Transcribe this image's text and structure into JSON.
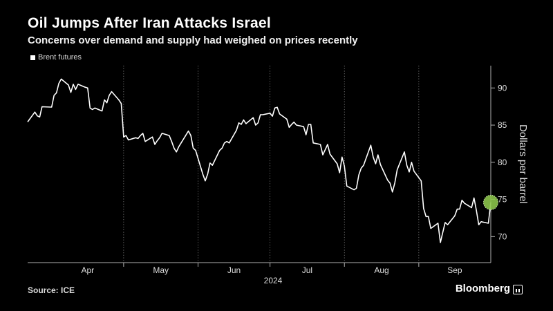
{
  "title": "Oil Jumps After Iran Attacks Israel",
  "subtitle": "Concerns over demand and supply had weighed on prices recently",
  "source": "Source: ICE",
  "brand": "Bloomberg",
  "colors": {
    "background": "#000000",
    "line": "#ffffff",
    "highlight": "#8bc34a"
  },
  "chart_data": {
    "type": "line",
    "title": "Oil Jumps After Iran Attacks Israel",
    "subtitle": "Concerns over demand and supply had weighed on prices recently",
    "ylabel": "Dollars per barrel",
    "year_label": "2024",
    "x_tick_labels": [
      "Apr",
      "May",
      "Jun",
      "Jul",
      "Aug",
      "Sep"
    ],
    "y_ticks": [
      70,
      75,
      80,
      85,
      90
    ],
    "ylim": [
      66.5,
      93
    ],
    "grid": "vertical-dotted",
    "legend_position": "top-left",
    "highlight_last_point": true,
    "series": [
      {
        "name": "Brent futures",
        "x": [
          "2024-03-22",
          "2024-03-25",
          "2024-03-26",
          "2024-03-27",
          "2024-03-28",
          "2024-04-01",
          "2024-04-02",
          "2024-04-03",
          "2024-04-04",
          "2024-04-05",
          "2024-04-08",
          "2024-04-09",
          "2024-04-10",
          "2024-04-11",
          "2024-04-12",
          "2024-04-15",
          "2024-04-16",
          "2024-04-17",
          "2024-04-18",
          "2024-04-19",
          "2024-04-22",
          "2024-04-23",
          "2024-04-24",
          "2024-04-25",
          "2024-04-26",
          "2024-04-29",
          "2024-04-30",
          "2024-05-01",
          "2024-05-02",
          "2024-05-03",
          "2024-05-06",
          "2024-05-07",
          "2024-05-08",
          "2024-05-09",
          "2024-05-10",
          "2024-05-13",
          "2024-05-14",
          "2024-05-15",
          "2024-05-16",
          "2024-05-17",
          "2024-05-20",
          "2024-05-21",
          "2024-05-22",
          "2024-05-23",
          "2024-05-24",
          "2024-05-28",
          "2024-05-29",
          "2024-05-30",
          "2024-05-31",
          "2024-06-03",
          "2024-06-04",
          "2024-06-05",
          "2024-06-06",
          "2024-06-07",
          "2024-06-10",
          "2024-06-11",
          "2024-06-12",
          "2024-06-13",
          "2024-06-14",
          "2024-06-17",
          "2024-06-18",
          "2024-06-19",
          "2024-06-20",
          "2024-06-21",
          "2024-06-24",
          "2024-06-25",
          "2024-06-26",
          "2024-06-27",
          "2024-06-28",
          "2024-07-01",
          "2024-07-02",
          "2024-07-03",
          "2024-07-04",
          "2024-07-05",
          "2024-07-08",
          "2024-07-09",
          "2024-07-10",
          "2024-07-11",
          "2024-07-12",
          "2024-07-15",
          "2024-07-16",
          "2024-07-17",
          "2024-07-18",
          "2024-07-19",
          "2024-07-22",
          "2024-07-23",
          "2024-07-24",
          "2024-07-25",
          "2024-07-26",
          "2024-07-29",
          "2024-07-30",
          "2024-07-31",
          "2024-08-01",
          "2024-08-02",
          "2024-08-05",
          "2024-08-06",
          "2024-08-07",
          "2024-08-08",
          "2024-08-09",
          "2024-08-12",
          "2024-08-13",
          "2024-08-14",
          "2024-08-15",
          "2024-08-16",
          "2024-08-19",
          "2024-08-20",
          "2024-08-21",
          "2024-08-22",
          "2024-08-23",
          "2024-08-26",
          "2024-08-27",
          "2024-08-28",
          "2024-08-29",
          "2024-08-30",
          "2024-09-02",
          "2024-09-03",
          "2024-09-04",
          "2024-09-05",
          "2024-09-06",
          "2024-09-09",
          "2024-09-10",
          "2024-09-11",
          "2024-09-12",
          "2024-09-13",
          "2024-09-16",
          "2024-09-17",
          "2024-09-18",
          "2024-09-19",
          "2024-09-20",
          "2024-09-23",
          "2024-09-24",
          "2024-09-25",
          "2024-09-26",
          "2024-09-27",
          "2024-09-30",
          "2024-10-01"
        ],
        "values": [
          85.43,
          86.75,
          86.25,
          86.09,
          87.48,
          87.42,
          89.0,
          89.35,
          90.6,
          91.2,
          90.4,
          89.4,
          90.5,
          89.8,
          90.5,
          90.1,
          90.0,
          87.3,
          87.1,
          87.3,
          86.9,
          88.4,
          88.0,
          89.0,
          89.5,
          88.4,
          87.9,
          83.4,
          83.6,
          83.0,
          83.3,
          83.2,
          83.6,
          83.9,
          82.8,
          83.4,
          82.4,
          82.9,
          83.3,
          83.9,
          83.6,
          82.8,
          81.9,
          81.4,
          82.1,
          84.2,
          83.6,
          81.9,
          81.6,
          78.4,
          77.5,
          78.4,
          79.9,
          79.6,
          81.6,
          81.9,
          82.6,
          82.8,
          82.6,
          84.3,
          85.3,
          85.1,
          85.7,
          85.2,
          86.0,
          85.0,
          85.3,
          86.4,
          86.4,
          86.6,
          86.2,
          87.3,
          87.4,
          86.5,
          85.8,
          84.7,
          85.1,
          85.4,
          85.0,
          84.8,
          83.7,
          85.1,
          85.1,
          82.6,
          82.4,
          81.0,
          81.7,
          82.4,
          81.1,
          79.8,
          78.6,
          80.7,
          79.5,
          76.8,
          76.3,
          76.5,
          78.3,
          79.2,
          79.6,
          82.3,
          80.7,
          79.8,
          81.0,
          79.7,
          77.6,
          77.2,
          76.0,
          77.2,
          79.0,
          81.4,
          79.6,
          78.7,
          80.0,
          78.8,
          77.5,
          73.8,
          72.7,
          72.7,
          71.1,
          71.8,
          69.2,
          70.6,
          71.9,
          71.6,
          72.8,
          73.7,
          73.7,
          74.9,
          74.5,
          73.9,
          75.2,
          73.5,
          71.6,
          72.0,
          71.8,
          74.6
        ]
      }
    ]
  },
  "legend": {
    "label": "Brent futures"
  }
}
